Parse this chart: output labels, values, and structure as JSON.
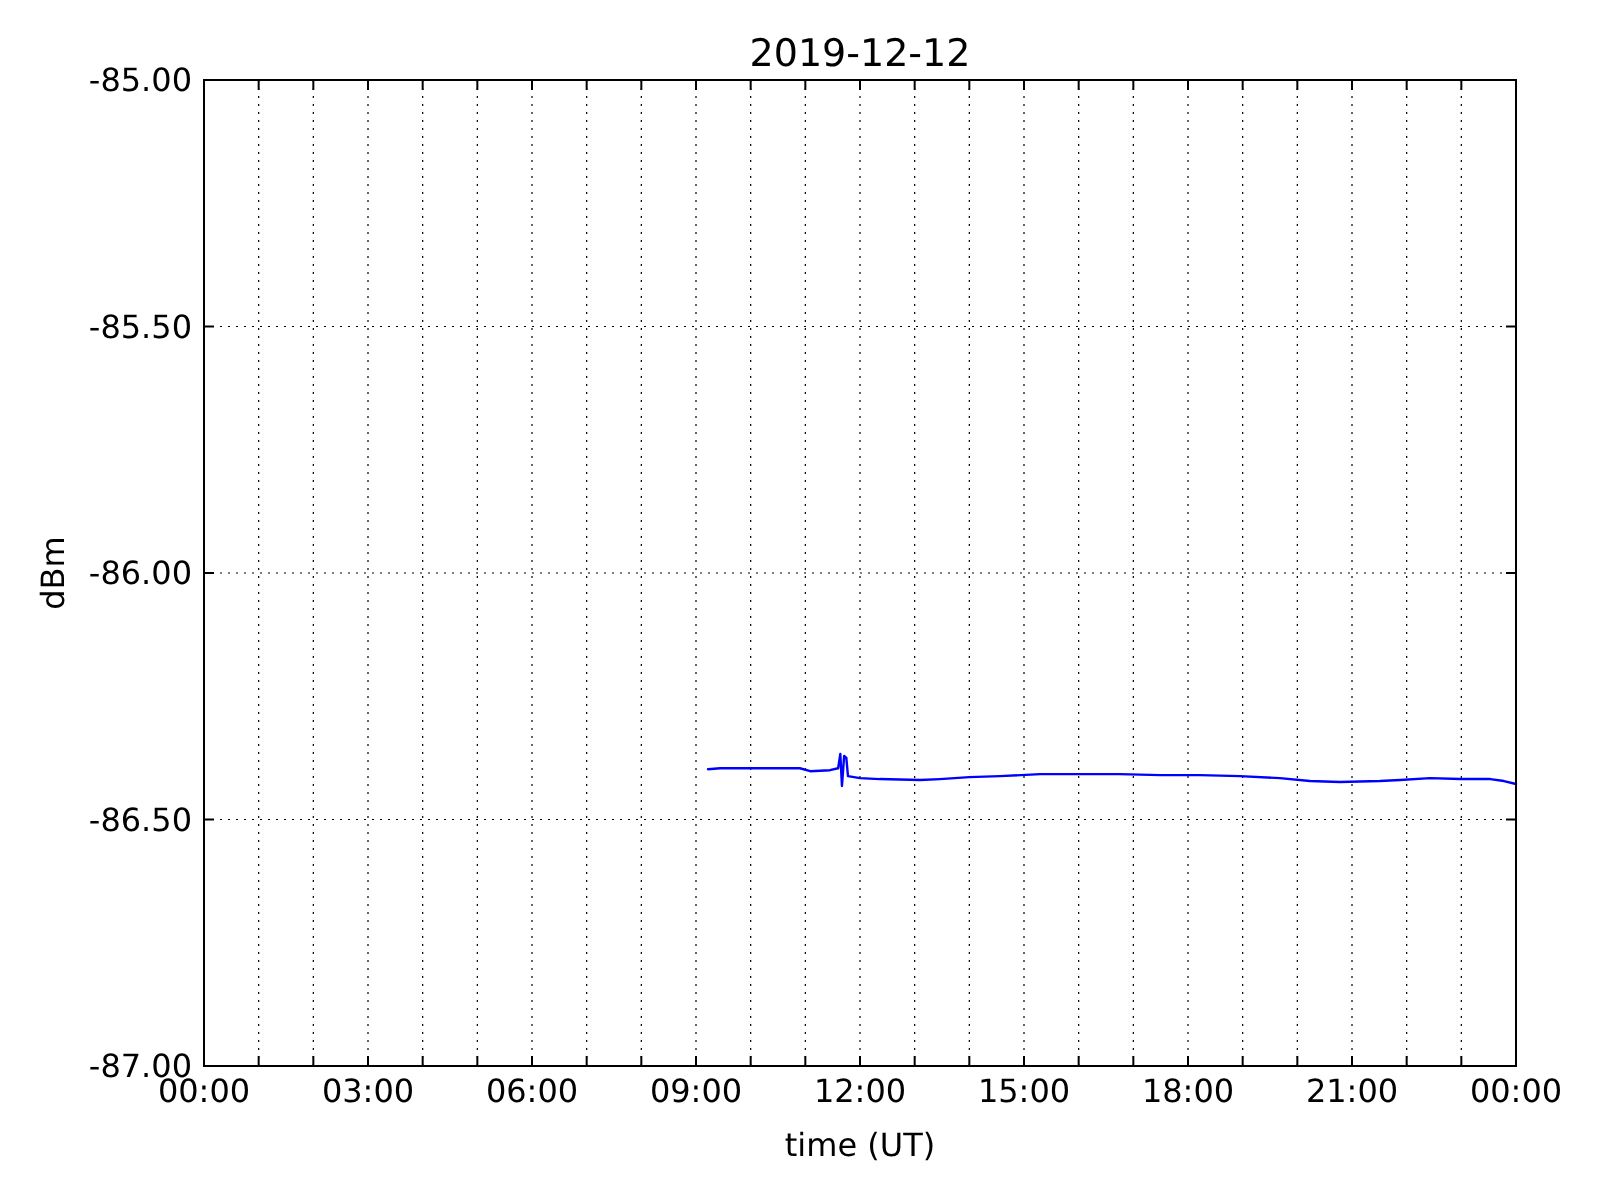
{
  "chart_data": {
    "type": "line",
    "title": "2019-12-12",
    "xlabel": "time (UT)",
    "ylabel": "dBm",
    "x": [
      9.22,
      9.44,
      10.17,
      10.9,
      11.09,
      11.45,
      11.6,
      11.64,
      11.67,
      11.71,
      11.75,
      11.78,
      12.0,
      12.36,
      13.1,
      13.46,
      14.0,
      14.56,
      15.3,
      16.0,
      16.75,
      17.5,
      18.22,
      18.95,
      19.68,
      20.23,
      20.78,
      21.51,
      21.88,
      22.43,
      22.98,
      23.53,
      23.78,
      24.0
    ],
    "series": [
      {
        "color": "#0000ff",
        "values": [
          -86.398,
          -86.396,
          -86.396,
          -86.396,
          -86.402,
          -86.4,
          -86.396,
          -86.367,
          -86.432,
          -86.371,
          -86.375,
          -86.412,
          -86.416,
          -86.418,
          -86.42,
          -86.418,
          -86.414,
          -86.412,
          -86.408,
          -86.408,
          -86.408,
          -86.41,
          -86.41,
          -86.412,
          -86.416,
          -86.422,
          -86.424,
          -86.422,
          -86.42,
          -86.416,
          -86.418,
          -86.418,
          -86.422,
          -86.428
        ]
      }
    ],
    "xlim": [
      0,
      24
    ],
    "xticks": [
      {
        "value": 0,
        "label": "00:00"
      },
      {
        "value": 1,
        "label": null
      },
      {
        "value": 2,
        "label": null
      },
      {
        "value": 3,
        "label": "03:00"
      },
      {
        "value": 4,
        "label": null
      },
      {
        "value": 5,
        "label": null
      },
      {
        "value": 6,
        "label": "06:00"
      },
      {
        "value": 7,
        "label": null
      },
      {
        "value": 8,
        "label": null
      },
      {
        "value": 9,
        "label": "09:00"
      },
      {
        "value": 10,
        "label": null
      },
      {
        "value": 11,
        "label": null
      },
      {
        "value": 12,
        "label": "12:00"
      },
      {
        "value": 13,
        "label": null
      },
      {
        "value": 14,
        "label": null
      },
      {
        "value": 15,
        "label": "15:00"
      },
      {
        "value": 16,
        "label": null
      },
      {
        "value": 17,
        "label": null
      },
      {
        "value": 18,
        "label": "18:00"
      },
      {
        "value": 19,
        "label": null
      },
      {
        "value": 20,
        "label": null
      },
      {
        "value": 21,
        "label": "21:00"
      },
      {
        "value": 22,
        "label": null
      },
      {
        "value": 23,
        "label": null
      },
      {
        "value": 24,
        "label": "00:00"
      }
    ],
    "ylim": [
      -87,
      -85
    ],
    "yticks": [
      {
        "value": -87,
        "label": "-87.00"
      },
      {
        "value": -86.5,
        "label": "-86.50"
      },
      {
        "value": -86,
        "label": "-86.00"
      },
      {
        "value": -85.5,
        "label": "-85.50"
      },
      {
        "value": -85,
        "label": "-85.00"
      }
    ],
    "grid": true,
    "line_style": "solid",
    "marker": "none"
  }
}
